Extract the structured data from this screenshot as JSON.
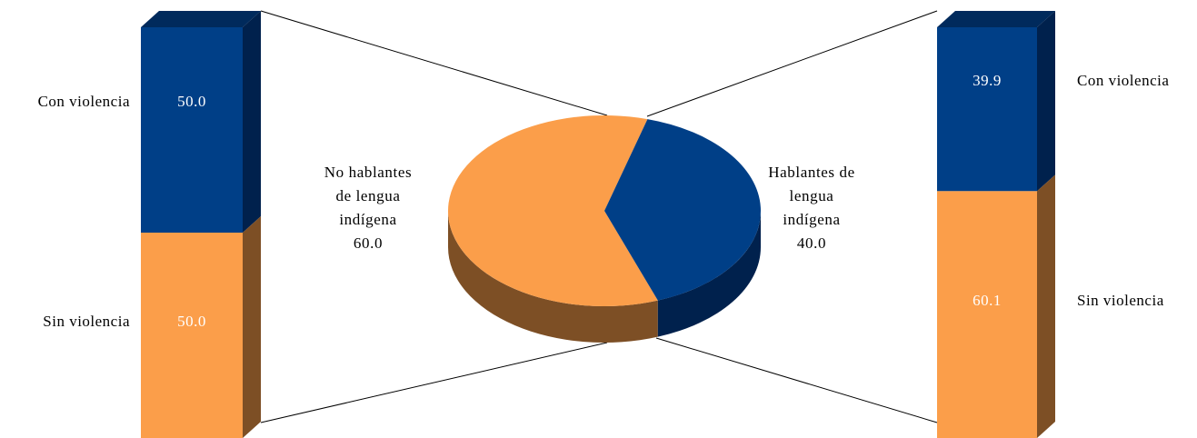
{
  "chart_data": [
    {
      "type": "pie",
      "categories": [
        "No hablantes de lengua indígena",
        "Hablantes de lengua indígena"
      ],
      "values": [
        60,
        40
      ],
      "value_labels": [
        "60.0",
        "40.0"
      ],
      "colors": [
        "#fb9e4a",
        "#003f87"
      ],
      "side_colors": [
        "#7d4f25",
        "#00214d"
      ]
    },
    {
      "type": "bar",
      "categories": [
        "Con violencia",
        "Sin violencia"
      ],
      "values": [
        50,
        50
      ],
      "value_labels": [
        "50.0",
        "50.0"
      ],
      "colors": [
        "#003f87",
        "#fb9e4a"
      ],
      "side_colors": [
        "#00214d",
        "#7d4f25"
      ]
    },
    {
      "type": "bar",
      "categories": [
        "Con violencia",
        "Sin violencia"
      ],
      "values": [
        39.9,
        60.1
      ],
      "value_labels": [
        "39.9",
        "60.1"
      ],
      "colors": [
        "#003f87",
        "#fb9e4a"
      ],
      "side_colors": [
        "#00214d",
        "#7d4f25"
      ]
    }
  ]
}
